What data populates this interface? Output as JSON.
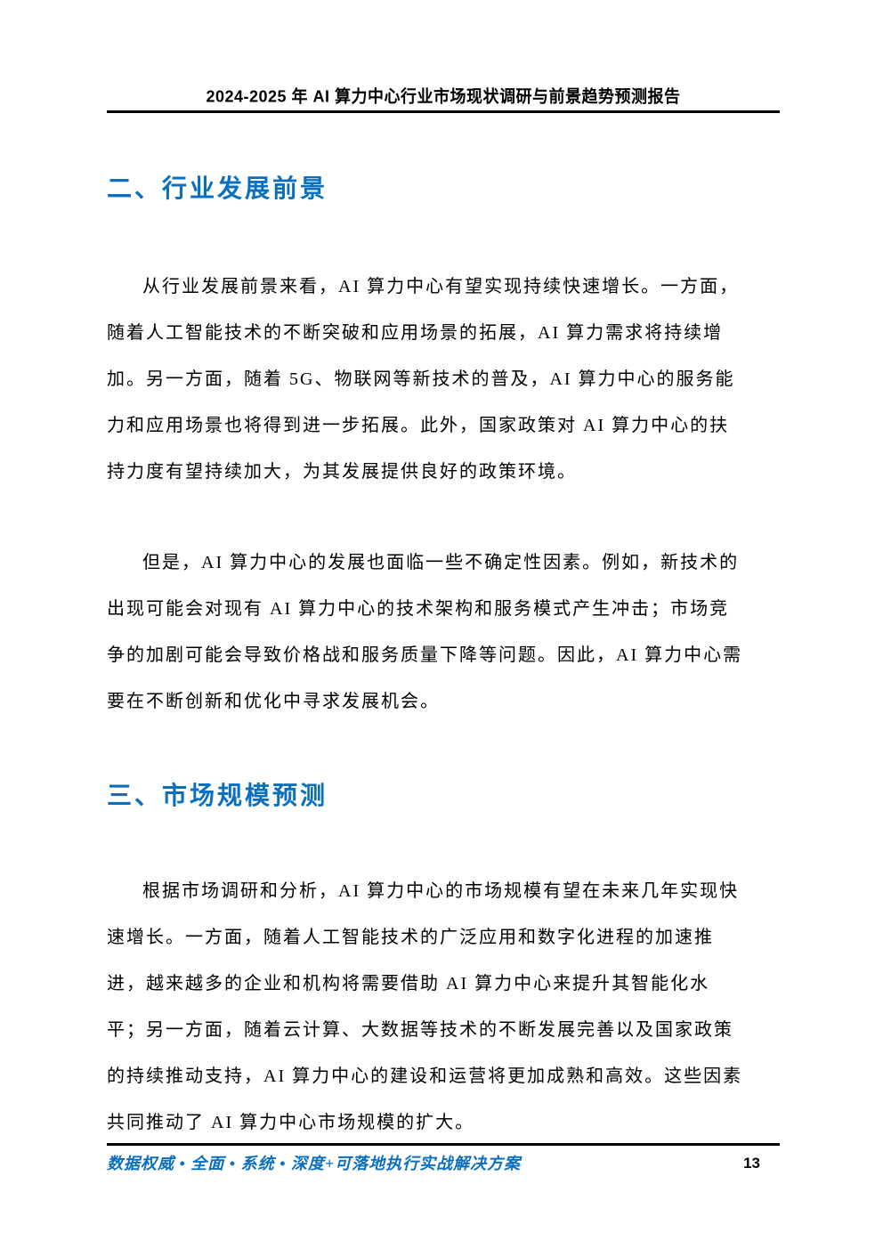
{
  "colors": {
    "accent_blue": "#0b6fbf",
    "text": "#000000",
    "background": "#ffffff"
  },
  "header": {
    "title": "2024-2025 年 AI 算力中心行业市场现状调研与前景趋势预测报告"
  },
  "sections": [
    {
      "heading": "二、行业发展前景",
      "paragraphs": [
        {
          "lines": [
            "从行业发展前景来看，AI 算力中心有望实现持续快速增长。一方面，",
            "随着人工智能技术的不断突破和应用场景的拓展，AI 算力需求将持续增",
            "加。另一方面，随着 5G、物联网等新技术的普及，AI 算力中心的服务能",
            "力和应用场景也将得到进一步拓展。此外，国家政策对 AI 算力中心的扶",
            "持力度有望持续加大，为其发展提供良好的政策环境。"
          ]
        },
        {
          "lines": [
            "但是，AI 算力中心的发展也面临一些不确定性因素。例如，新技术的",
            "出现可能会对现有 AI 算力中心的技术架构和服务模式产生冲击；市场竞",
            "争的加剧可能会导致价格战和服务质量下降等问题。因此，AI 算力中心需",
            "要在不断创新和优化中寻求发展机会。"
          ]
        }
      ]
    },
    {
      "heading": "三、市场规模预测",
      "paragraphs": [
        {
          "lines": [
            "根据市场调研和分析，AI 算力中心的市场规模有望在未来几年实现快",
            "速增长。一方面，随着人工智能技术的广泛应用和数字化进程的加速推",
            "进，越来越多的企业和机构将需要借助 AI 算力中心来提升其智能化水",
            "平；另一方面，随着云计算、大数据等技术的不断发展完善以及国家政策",
            "的持续推动支持，AI 算力中心的建设和运营将更加成熟和高效。这些因素",
            "共同推动了 AI 算力中心市场规模的扩大。"
          ]
        }
      ]
    }
  ],
  "footer": {
    "slogan": "数据权威 • 全面 • 系统 • 深度+可落地执行实战解决方案",
    "page_number": "13"
  }
}
